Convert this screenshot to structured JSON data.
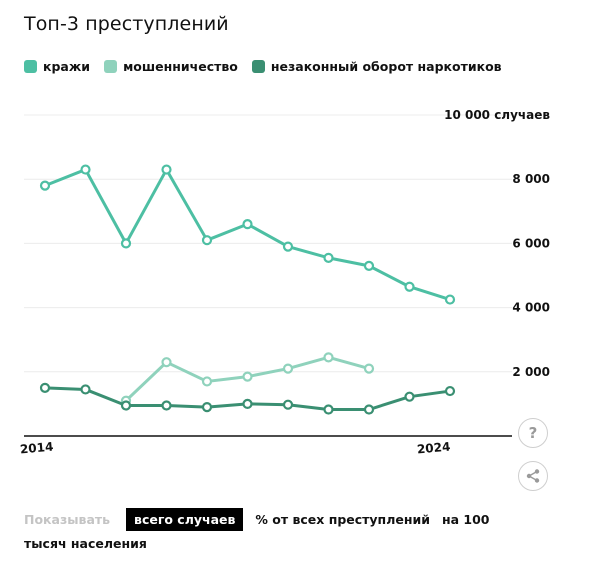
{
  "title": "Топ-3 преступлений",
  "legend": [
    {
      "label": "кражи",
      "color": "#4dbfa3"
    },
    {
      "label": "мошенничество",
      "color": "#8fd2bc"
    },
    {
      "label": "незаконный оборот наркотиков",
      "color": "#3a8f72"
    }
  ],
  "y_unit_label": "10 000 случаев",
  "buttons": {
    "help_glyph": "?",
    "share_icon": "share-icon"
  },
  "controls": {
    "show_label": "Показывать",
    "options": [
      "всего случаев",
      "% от всех преступлений",
      "на 100 тысяч населения"
    ],
    "active_index": 0
  },
  "chart_data": {
    "type": "line",
    "title": "Топ-3 преступлений",
    "x": [
      2014,
      2015,
      2016,
      2017,
      2018,
      2019,
      2020,
      2021,
      2022,
      2023,
      2024
    ],
    "x_tick_labels": [
      "2014",
      "2024"
    ],
    "y_ticks": [
      "2 000",
      "4 000",
      "6 000",
      "8 000",
      "10 000 случаев"
    ],
    "ylim": [
      0,
      10000
    ],
    "series": [
      {
        "name": "кражи",
        "color": "#4dbfa3",
        "values": [
          7800,
          8300,
          6000,
          8300,
          6100,
          6600,
          5900,
          5550,
          5300,
          4650,
          4250
        ]
      },
      {
        "name": "мошенничество",
        "color": "#8fd2bc",
        "values": [
          null,
          null,
          1100,
          2300,
          1700,
          1850,
          2100,
          2450,
          2100,
          null,
          null
        ]
      },
      {
        "name": "незаконный оборот наркотиков",
        "color": "#3a8f72",
        "values": [
          1500,
          1450,
          950,
          950,
          900,
          1000,
          975,
          825,
          825,
          1225,
          1400
        ]
      }
    ],
    "grid": true
  }
}
